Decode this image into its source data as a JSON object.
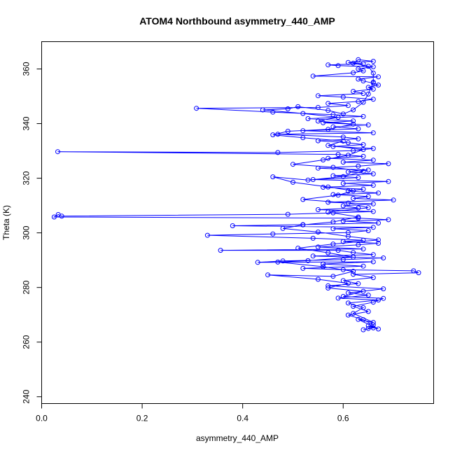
{
  "chart_data": {
    "type": "scatter",
    "title": "ATOM4 Northbound asymmetry_440_AMP",
    "xlabel": "asymmetry_440_AMP",
    "ylabel": "Theta (K)",
    "xlim": [
      0,
      0.78
    ],
    "ylim": [
      237.5,
      370
    ],
    "xticks": [
      0.0,
      0.2,
      0.4,
      0.6
    ],
    "xtick_labels": [
      "0.0",
      "0.2",
      "0.4",
      "0.6"
    ],
    "yticks": [
      240,
      260,
      280,
      300,
      320,
      340,
      360
    ],
    "ytick_labels": [
      "240",
      "260",
      "280",
      "300",
      "320",
      "340",
      "360"
    ],
    "grid": false,
    "legend": "none",
    "colors": {
      "series": "#0000ff",
      "axes": "#000000",
      "background": "#ffffff"
    },
    "series": [
      {
        "style": "line+points",
        "points": [
          [
            0.64,
            264.5
          ],
          [
            0.66,
            265.2
          ],
          [
            0.65,
            266.0
          ],
          [
            0.67,
            264.8
          ],
          [
            0.63,
            268.3
          ],
          [
            0.66,
            267.2
          ],
          [
            0.62,
            270.5
          ],
          [
            0.64,
            272.6
          ],
          [
            0.61,
            274.3
          ],
          [
            0.67,
            275.4
          ],
          [
            0.59,
            276.1
          ],
          [
            0.65,
            277.2
          ],
          [
            0.61,
            278.0
          ],
          [
            0.68,
            279.5
          ],
          [
            0.57,
            280.6
          ],
          [
            0.63,
            281.4
          ],
          [
            0.6,
            282.5
          ],
          [
            0.66,
            283.6
          ],
          [
            0.62,
            284.8
          ],
          [
            0.75,
            285.4
          ],
          [
            0.74,
            286.1
          ],
          [
            0.6,
            286.5
          ],
          [
            0.52,
            287.0
          ],
          [
            0.64,
            287.8
          ],
          [
            0.56,
            288.6
          ],
          [
            0.66,
            289.4
          ],
          [
            0.43,
            289.2
          ],
          [
            0.48,
            289.7
          ],
          [
            0.6,
            290.2
          ],
          [
            0.68,
            290.8
          ],
          [
            0.54,
            291.5
          ],
          [
            0.66,
            292.0
          ],
          [
            0.62,
            292.8
          ],
          [
            0.59,
            293.6
          ],
          [
            0.356,
            293.6
          ],
          [
            0.64,
            294.1
          ],
          [
            0.55,
            294.8
          ],
          [
            0.63,
            295.6
          ],
          [
            0.67,
            296.2
          ],
          [
            0.6,
            296.8
          ],
          [
            0.64,
            297.3
          ],
          [
            0.54,
            298.0
          ],
          [
            0.33,
            299.1
          ],
          [
            0.46,
            299.6
          ],
          [
            0.61,
            300.1
          ],
          [
            0.65,
            300.8
          ],
          [
            0.58,
            301.5
          ],
          [
            0.66,
            302.0
          ],
          [
            0.38,
            302.6
          ],
          [
            0.52,
            303.0
          ],
          [
            0.67,
            303.6
          ],
          [
            0.6,
            304.3
          ],
          [
            0.69,
            304.8
          ],
          [
            0.63,
            305.4
          ],
          [
            0.025,
            305.8
          ],
          [
            0.033,
            306.7
          ],
          [
            0.04,
            306.1
          ],
          [
            0.49,
            306.8
          ],
          [
            0.58,
            307.3
          ],
          [
            0.66,
            307.8
          ],
          [
            0.55,
            308.5
          ],
          [
            0.63,
            309.1
          ],
          [
            0.6,
            309.9
          ],
          [
            0.66,
            310.6
          ],
          [
            0.57,
            311.2
          ],
          [
            0.7,
            312.0
          ],
          [
            0.62,
            312.6
          ],
          [
            0.65,
            313.3
          ],
          [
            0.58,
            314.0
          ],
          [
            0.67,
            314.6
          ],
          [
            0.61,
            315.3
          ],
          [
            0.64,
            316.0
          ],
          [
            0.56,
            316.7
          ],
          [
            0.66,
            317.4
          ],
          [
            0.6,
            318.1
          ],
          [
            0.69,
            318.8
          ],
          [
            0.54,
            319.5
          ],
          [
            0.63,
            320.2
          ],
          [
            0.58,
            320.9
          ],
          [
            0.66,
            321.6
          ],
          [
            0.61,
            322.3
          ],
          [
            0.65,
            323.0
          ],
          [
            0.55,
            323.7
          ],
          [
            0.63,
            324.4
          ],
          [
            0.69,
            325.3
          ],
          [
            0.6,
            325.9
          ],
          [
            0.66,
            326.6
          ],
          [
            0.57,
            327.3
          ],
          [
            0.64,
            328.0
          ],
          [
            0.59,
            328.7
          ],
          [
            0.032,
            329.7
          ],
          [
            0.47,
            329.4
          ],
          [
            0.62,
            330.1
          ],
          [
            0.66,
            330.9
          ],
          [
            0.58,
            331.6
          ],
          [
            0.64,
            332.3
          ],
          [
            0.61,
            333.0
          ],
          [
            0.55,
            333.7
          ],
          [
            0.63,
            334.4
          ],
          [
            0.6,
            335.1
          ],
          [
            0.47,
            336.1
          ],
          [
            0.66,
            336.6
          ],
          [
            0.52,
            337.4
          ],
          [
            0.63,
            338.1
          ],
          [
            0.58,
            338.8
          ],
          [
            0.65,
            339.5
          ],
          [
            0.56,
            340.3
          ],
          [
            0.62,
            341.0
          ],
          [
            0.53,
            341.8
          ],
          [
            0.64,
            342.6
          ],
          [
            0.58,
            343.3
          ],
          [
            0.46,
            344.2
          ],
          [
            0.308,
            345.6
          ],
          [
            0.55,
            345.9
          ],
          [
            0.61,
            346.6
          ],
          [
            0.57,
            347.4
          ],
          [
            0.63,
            348.1
          ],
          [
            0.66,
            348.9
          ],
          [
            0.6,
            349.7
          ],
          [
            0.55,
            350.2
          ],
          [
            0.64,
            351.0
          ],
          [
            0.62,
            351.8
          ],
          [
            0.66,
            352.6
          ],
          [
            0.65,
            353.3
          ],
          [
            0.67,
            354.1
          ],
          [
            0.66,
            354.8
          ],
          [
            0.64,
            355.6
          ],
          [
            0.63,
            356.3
          ],
          [
            0.67,
            357.1
          ],
          [
            0.54,
            357.4
          ],
          [
            0.62,
            358.6
          ],
          [
            0.64,
            359.3
          ],
          [
            0.63,
            360.0
          ],
          [
            0.66,
            360.8
          ],
          [
            0.59,
            361.2
          ],
          [
            0.57,
            361.5
          ],
          [
            0.64,
            361.9
          ],
          [
            0.61,
            362.4
          ],
          [
            0.66,
            362.8
          ],
          [
            0.63,
            363.4
          ],
          [
            0.62,
            362.1
          ],
          [
            0.65,
            361.0
          ],
          [
            0.66,
            358.5
          ],
          [
            0.66,
            355.2
          ],
          [
            0.65,
            350.8
          ],
          [
            0.64,
            347.8
          ],
          [
            0.62,
            345.0
          ],
          [
            0.6,
            343.5
          ],
          [
            0.57,
            344.8
          ],
          [
            0.51,
            346.2
          ],
          [
            0.49,
            345.4
          ],
          [
            0.44,
            345.0
          ],
          [
            0.52,
            343.7
          ],
          [
            0.59,
            342.3
          ],
          [
            0.55,
            340.9
          ],
          [
            0.62,
            339.8
          ],
          [
            0.57,
            337.9
          ],
          [
            0.49,
            337.2
          ],
          [
            0.46,
            335.9
          ],
          [
            0.52,
            334.8
          ],
          [
            0.6,
            333.6
          ],
          [
            0.57,
            332.0
          ],
          [
            0.64,
            330.5
          ],
          [
            0.61,
            328.4
          ],
          [
            0.56,
            326.7
          ],
          [
            0.5,
            325.1
          ],
          [
            0.58,
            324.0
          ],
          [
            0.64,
            322.5
          ],
          [
            0.6,
            320.6
          ],
          [
            0.53,
            319.3
          ],
          [
            0.46,
            320.5
          ],
          [
            0.5,
            318.5
          ],
          [
            0.57,
            316.8
          ],
          [
            0.62,
            315.4
          ],
          [
            0.59,
            313.8
          ],
          [
            0.52,
            312.2
          ],
          [
            0.61,
            310.9
          ],
          [
            0.65,
            309.2
          ],
          [
            0.57,
            307.6
          ],
          [
            0.63,
            305.8
          ],
          [
            0.58,
            304.0
          ],
          [
            0.52,
            302.9
          ],
          [
            0.48,
            301.6
          ],
          [
            0.55,
            300.3
          ],
          [
            0.61,
            298.7
          ],
          [
            0.67,
            297.4
          ],
          [
            0.58,
            295.9
          ],
          [
            0.51,
            294.4
          ],
          [
            0.57,
            292.7
          ],
          [
            0.62,
            291.1
          ],
          [
            0.53,
            289.8
          ],
          [
            0.47,
            289.3
          ],
          [
            0.56,
            287.6
          ],
          [
            0.62,
            285.9
          ],
          [
            0.58,
            284.1
          ],
          [
            0.45,
            284.6
          ],
          [
            0.55,
            283.0
          ],
          [
            0.61,
            281.5
          ],
          [
            0.57,
            279.8
          ],
          [
            0.64,
            278.6
          ],
          [
            0.6,
            276.7
          ],
          [
            0.68,
            276.0
          ],
          [
            0.66,
            274.6
          ],
          [
            0.62,
            273.1
          ],
          [
            0.65,
            271.2
          ],
          [
            0.61,
            269.9
          ],
          [
            0.64,
            268.2
          ],
          [
            0.66,
            266.3
          ],
          [
            0.65,
            265.0
          ]
        ]
      }
    ]
  }
}
